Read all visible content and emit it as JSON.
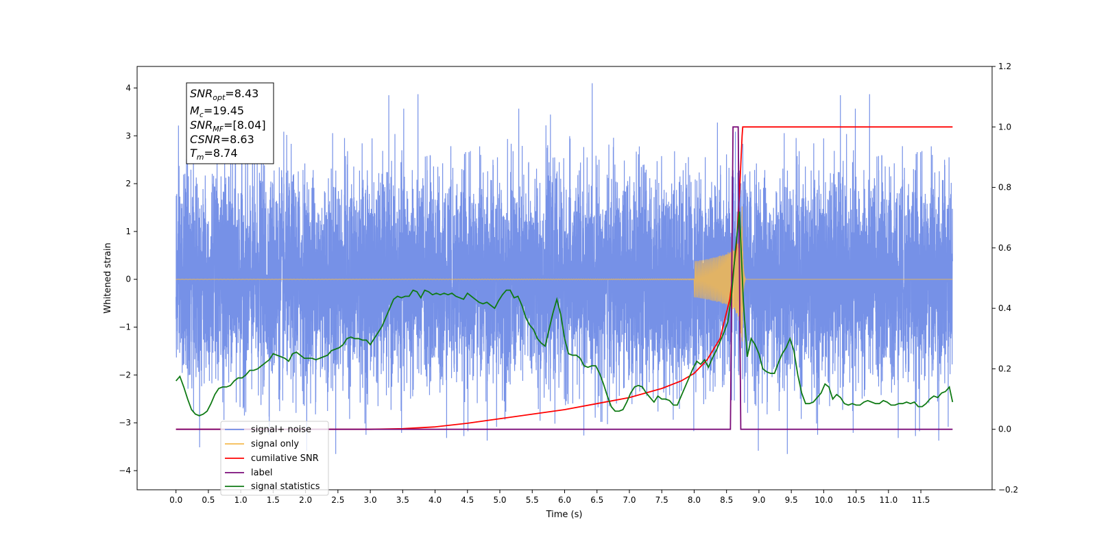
{
  "chart_data": {
    "type": "line",
    "xlabel": "Time (s)",
    "ylabel": "Whitened strain",
    "xlim": [
      -0.6,
      12.6
    ],
    "ylim": [
      -4.4,
      4.45
    ],
    "ylim_right": [
      -0.2,
      1.2
    ],
    "x_ticks": [
      0.0,
      0.5,
      1.0,
      1.5,
      2.0,
      2.5,
      3.0,
      3.5,
      4.0,
      4.5,
      5.0,
      5.5,
      6.0,
      6.5,
      7.0,
      7.5,
      8.0,
      8.5,
      9.0,
      9.5,
      10.0,
      10.5,
      11.0,
      11.5
    ],
    "x_tick_labels": [
      "0.0",
      "0.5",
      "1.0",
      "1.5",
      "2.0",
      "2.5",
      "3.0",
      "3.5",
      "4.0",
      "4.5",
      "5.0",
      "5.5",
      "6.0",
      "6.5",
      "7.0",
      "7.5",
      "8.0",
      "8.5",
      "9.0",
      "9.5",
      "10.0",
      "10.5",
      "11.0",
      "11.5"
    ],
    "y_ticks": [
      -4,
      -3,
      -2,
      -1,
      0,
      1,
      2,
      3,
      4
    ],
    "y_tick_labels": [
      "−4",
      "−3",
      "−2",
      "−1",
      "0",
      "1",
      "2",
      "3",
      "4"
    ],
    "y_ticks_right": [
      -0.2,
      0.0,
      0.2,
      0.4,
      0.6,
      0.8,
      1.0,
      1.2
    ],
    "y_tick_labels_right": [
      "−0.2",
      "0.0",
      "0.2",
      "0.4",
      "0.6",
      "0.8",
      "1.0",
      "1.2"
    ],
    "grid": false,
    "legend_position": "lower-left",
    "series": [
      {
        "name": "signal+ noise",
        "color": "#6f8be6",
        "axis": "left",
        "description": "dense noise, approx. range -3.9 to 4.1",
        "time_range": [
          0.0,
          11.99
        ]
      },
      {
        "name": "signal only",
        "color": "#f5b94e",
        "axis": "left",
        "description": "chirp, amplitude grows until merger at 8.74 s",
        "time_range": [
          0.0,
          11.99
        ],
        "merger_time": 8.74,
        "peak_amplitude": 1.6
      },
      {
        "name": "cumilative SNR",
        "color": "#ff0000",
        "axis": "right",
        "x": [
          0.0,
          3.0,
          3.5,
          4.0,
          4.5,
          5.0,
          5.5,
          6.0,
          6.5,
          7.0,
          7.5,
          7.8,
          8.0,
          8.2,
          8.4,
          8.55,
          8.65,
          8.7,
          8.74,
          8.75,
          9.0,
          10.0,
          11.0,
          11.99
        ],
        "y": [
          0.0,
          0.0,
          0.002,
          0.008,
          0.02,
          0.035,
          0.05,
          0.065,
          0.085,
          0.105,
          0.135,
          0.16,
          0.185,
          0.23,
          0.3,
          0.43,
          0.6,
          0.78,
          0.97,
          1.0,
          1.0,
          1.0,
          1.0,
          1.0
        ]
      },
      {
        "name": "label",
        "color": "#7a0a78",
        "axis": "right",
        "x": [
          0.0,
          8.56,
          8.6,
          8.68,
          8.72,
          11.99
        ],
        "y": [
          0.0,
          0.0,
          1.0,
          1.0,
          0.0,
          0.0
        ]
      },
      {
        "name": "signal statistics",
        "color": "#0f7a14",
        "axis": "right",
        "x": [
          0.0,
          0.06,
          0.12,
          0.18,
          0.24,
          0.3,
          0.36,
          0.42,
          0.48,
          0.54,
          0.6,
          0.66,
          0.72,
          0.78,
          0.84,
          0.9,
          0.96,
          1.02,
          1.08,
          1.14,
          1.2,
          1.26,
          1.32,
          1.38,
          1.44,
          1.5,
          1.56,
          1.62,
          1.68,
          1.74,
          1.8,
          1.86,
          1.92,
          1.98,
          2.04,
          2.1,
          2.16,
          2.22,
          2.28,
          2.34,
          2.4,
          2.46,
          2.52,
          2.58,
          2.64,
          2.7,
          2.76,
          2.82,
          2.88,
          2.94,
          3.0,
          3.06,
          3.12,
          3.18,
          3.24,
          3.3,
          3.36,
          3.42,
          3.48,
          3.54,
          3.6,
          3.66,
          3.72,
          3.78,
          3.84,
          3.9,
          3.96,
          4.02,
          4.08,
          4.14,
          4.2,
          4.26,
          4.32,
          4.38,
          4.44,
          4.5,
          4.56,
          4.62,
          4.68,
          4.74,
          4.8,
          4.86,
          4.92,
          4.98,
          5.04,
          5.1,
          5.16,
          5.22,
          5.28,
          5.34,
          5.4,
          5.46,
          5.52,
          5.58,
          5.64,
          5.7,
          5.76,
          5.82,
          5.88,
          5.94,
          6.0,
          6.06,
          6.12,
          6.18,
          6.24,
          6.3,
          6.36,
          6.42,
          6.48,
          6.54,
          6.6,
          6.66,
          6.72,
          6.78,
          6.84,
          6.9,
          6.96,
          7.02,
          7.08,
          7.14,
          7.2,
          7.26,
          7.32,
          7.38,
          7.44,
          7.5,
          7.56,
          7.62,
          7.68,
          7.74,
          7.8,
          7.86,
          7.92,
          7.98,
          8.04,
          8.1,
          8.16,
          8.22,
          8.28,
          8.34,
          8.4,
          8.46,
          8.52,
          8.58,
          8.64,
          8.7,
          8.76,
          8.82,
          8.88,
          8.94,
          9.0,
          9.06,
          9.12,
          9.18,
          9.24,
          9.3,
          9.36,
          9.42,
          9.48,
          9.54,
          9.6,
          9.66,
          9.72,
          9.78,
          9.84,
          9.9,
          9.96,
          10.02,
          10.08,
          10.14,
          10.2,
          10.26,
          10.32,
          10.38,
          10.44,
          10.5,
          10.56,
          10.62,
          10.68,
          10.74,
          10.8,
          10.86,
          10.92,
          10.98,
          11.04,
          11.1,
          11.16,
          11.22,
          11.28,
          11.34,
          11.4,
          11.46,
          11.52,
          11.58,
          11.64,
          11.7,
          11.76,
          11.82,
          11.88,
          11.94,
          11.99
        ],
        "y": [
          0.16,
          0.175,
          0.14,
          0.1,
          0.065,
          0.05,
          0.045,
          0.05,
          0.06,
          0.085,
          0.115,
          0.135,
          0.14,
          0.14,
          0.145,
          0.16,
          0.17,
          0.17,
          0.18,
          0.195,
          0.195,
          0.2,
          0.21,
          0.22,
          0.23,
          0.25,
          0.245,
          0.24,
          0.235,
          0.225,
          0.25,
          0.255,
          0.245,
          0.235,
          0.235,
          0.235,
          0.23,
          0.235,
          0.24,
          0.245,
          0.26,
          0.265,
          0.27,
          0.28,
          0.3,
          0.305,
          0.3,
          0.3,
          0.295,
          0.295,
          0.28,
          0.3,
          0.32,
          0.34,
          0.37,
          0.4,
          0.43,
          0.44,
          0.435,
          0.44,
          0.44,
          0.46,
          0.455,
          0.435,
          0.46,
          0.455,
          0.445,
          0.45,
          0.445,
          0.45,
          0.445,
          0.45,
          0.44,
          0.435,
          0.43,
          0.45,
          0.44,
          0.43,
          0.42,
          0.415,
          0.42,
          0.41,
          0.4,
          0.425,
          0.445,
          0.46,
          0.46,
          0.435,
          0.44,
          0.41,
          0.37,
          0.345,
          0.33,
          0.3,
          0.285,
          0.275,
          0.33,
          0.385,
          0.43,
          0.38,
          0.3,
          0.25,
          0.245,
          0.245,
          0.235,
          0.21,
          0.205,
          0.21,
          0.21,
          0.185,
          0.15,
          0.11,
          0.075,
          0.06,
          0.06,
          0.065,
          0.09,
          0.12,
          0.14,
          0.145,
          0.14,
          0.12,
          0.105,
          0.09,
          0.11,
          0.1,
          0.1,
          0.095,
          0.08,
          0.08,
          0.11,
          0.14,
          0.17,
          0.2,
          0.225,
          0.215,
          0.23,
          0.205,
          0.235,
          0.26,
          0.29,
          0.32,
          0.355,
          0.45,
          0.6,
          0.72,
          0.42,
          0.24,
          0.3,
          0.28,
          0.25,
          0.2,
          0.19,
          0.185,
          0.185,
          0.22,
          0.25,
          0.27,
          0.3,
          0.26,
          0.18,
          0.12,
          0.085,
          0.085,
          0.09,
          0.105,
          0.12,
          0.15,
          0.14,
          0.1,
          0.115,
          0.105,
          0.085,
          0.08,
          0.085,
          0.08,
          0.08,
          0.09,
          0.095,
          0.09,
          0.085,
          0.085,
          0.095,
          0.09,
          0.08,
          0.08,
          0.085,
          0.085,
          0.09,
          0.085,
          0.09,
          0.075,
          0.075,
          0.085,
          0.1,
          0.11,
          0.105,
          0.12,
          0.125,
          0.14,
          0.09
        ]
      }
    ]
  },
  "stats_box": {
    "lines": [
      {
        "name": "SNR",
        "sub": "opt",
        "value": "=8.43"
      },
      {
        "name": "M",
        "sub": "c",
        "value": "=19.45"
      },
      {
        "name": "SNR",
        "sub": "MF",
        "value": "=[8.04]"
      },
      {
        "name": "CSNR",
        "sub": "",
        "value": "=8.63"
      },
      {
        "name": "T",
        "sub": "m",
        "value": "=8.74"
      }
    ]
  },
  "legend": {
    "items": [
      {
        "label": "signal+ noise",
        "color": "#6f8be6"
      },
      {
        "label": "signal only",
        "color": "#f5b94e"
      },
      {
        "label": "cumilative SNR",
        "color": "#ff0000"
      },
      {
        "label": "label",
        "color": "#7a0a78"
      },
      {
        "label": "signal statistics",
        "color": "#0f7a14"
      }
    ]
  }
}
